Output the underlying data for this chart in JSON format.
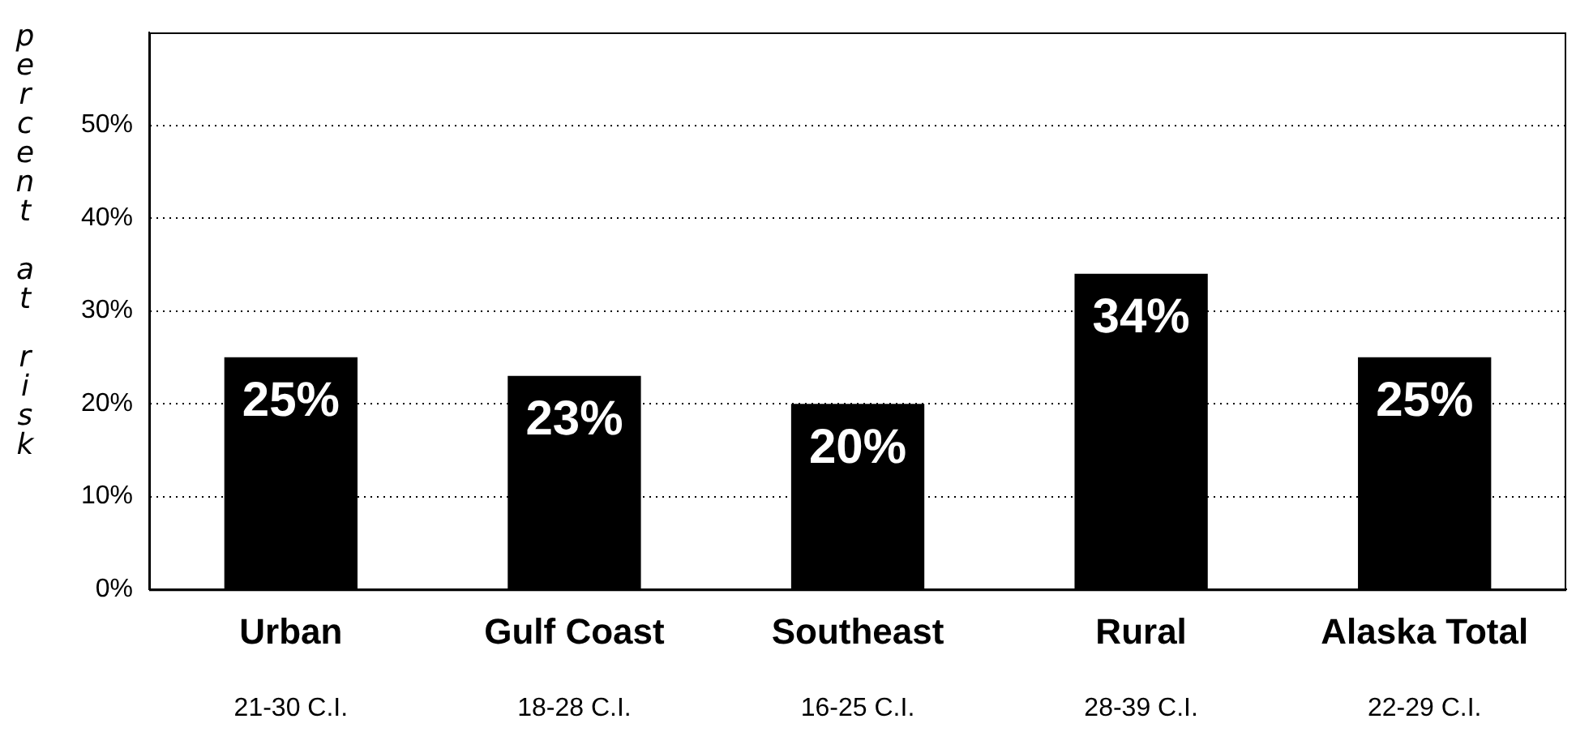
{
  "chart_data": {
    "type": "bar",
    "ylabel": "percent at risk",
    "categories": [
      "Urban",
      "Gulf Coast",
      "Southeast",
      "Rural",
      "Alaska Total"
    ],
    "values": [
      25,
      23,
      20,
      34,
      25
    ],
    "color": "#000000",
    "value_labels": [
      "25%",
      "23%",
      "20%",
      "34%",
      "25%"
    ],
    "annotations": [
      "21-30 C.I.",
      "18-28 C.I.",
      "16-25 C.I.",
      "28-39 C.I.",
      "22-29 C.I."
    ],
    "ylim": [
      0,
      60
    ],
    "yticks": [
      {
        "value": 0,
        "label": "0%"
      },
      {
        "value": 10,
        "label": "10%"
      },
      {
        "value": 20,
        "label": "20%"
      },
      {
        "value": 30,
        "label": "30%"
      },
      {
        "value": 40,
        "label": "40%"
      },
      {
        "value": 50,
        "label": "50%"
      }
    ],
    "grid": "y"
  }
}
